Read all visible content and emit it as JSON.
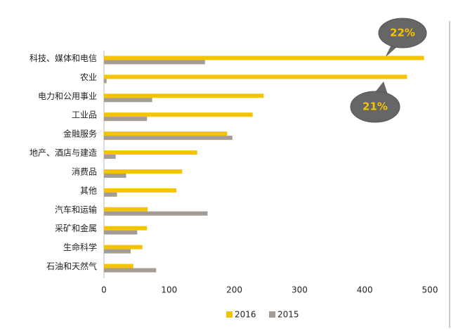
{
  "chart_data": {
    "type": "hbar",
    "categories": [
      "科技、媒体和电信",
      "农业",
      "电力和公用事业",
      "工业品",
      "金融服务",
      "地产、酒店与建造",
      "消费品",
      "其他",
      "汽车和运输",
      "采矿和金属",
      "生命科学",
      "石油和天然气"
    ],
    "series": [
      {
        "name": "2016",
        "color": "#f5c400",
        "values": [
          491,
          465,
          245,
          228,
          189,
          143,
          120,
          111,
          67,
          66,
          59,
          45
        ]
      },
      {
        "name": "2015",
        "color": "#a59d95",
        "values": [
          155,
          4,
          74,
          66,
          197,
          18,
          34,
          20,
          159,
          51,
          41,
          80
        ]
      }
    ],
    "xlim": [
      0,
      500
    ],
    "xticks": [
      0,
      100,
      200,
      300,
      400,
      500
    ],
    "annotations": [
      "22%",
      "21%"
    ]
  }
}
